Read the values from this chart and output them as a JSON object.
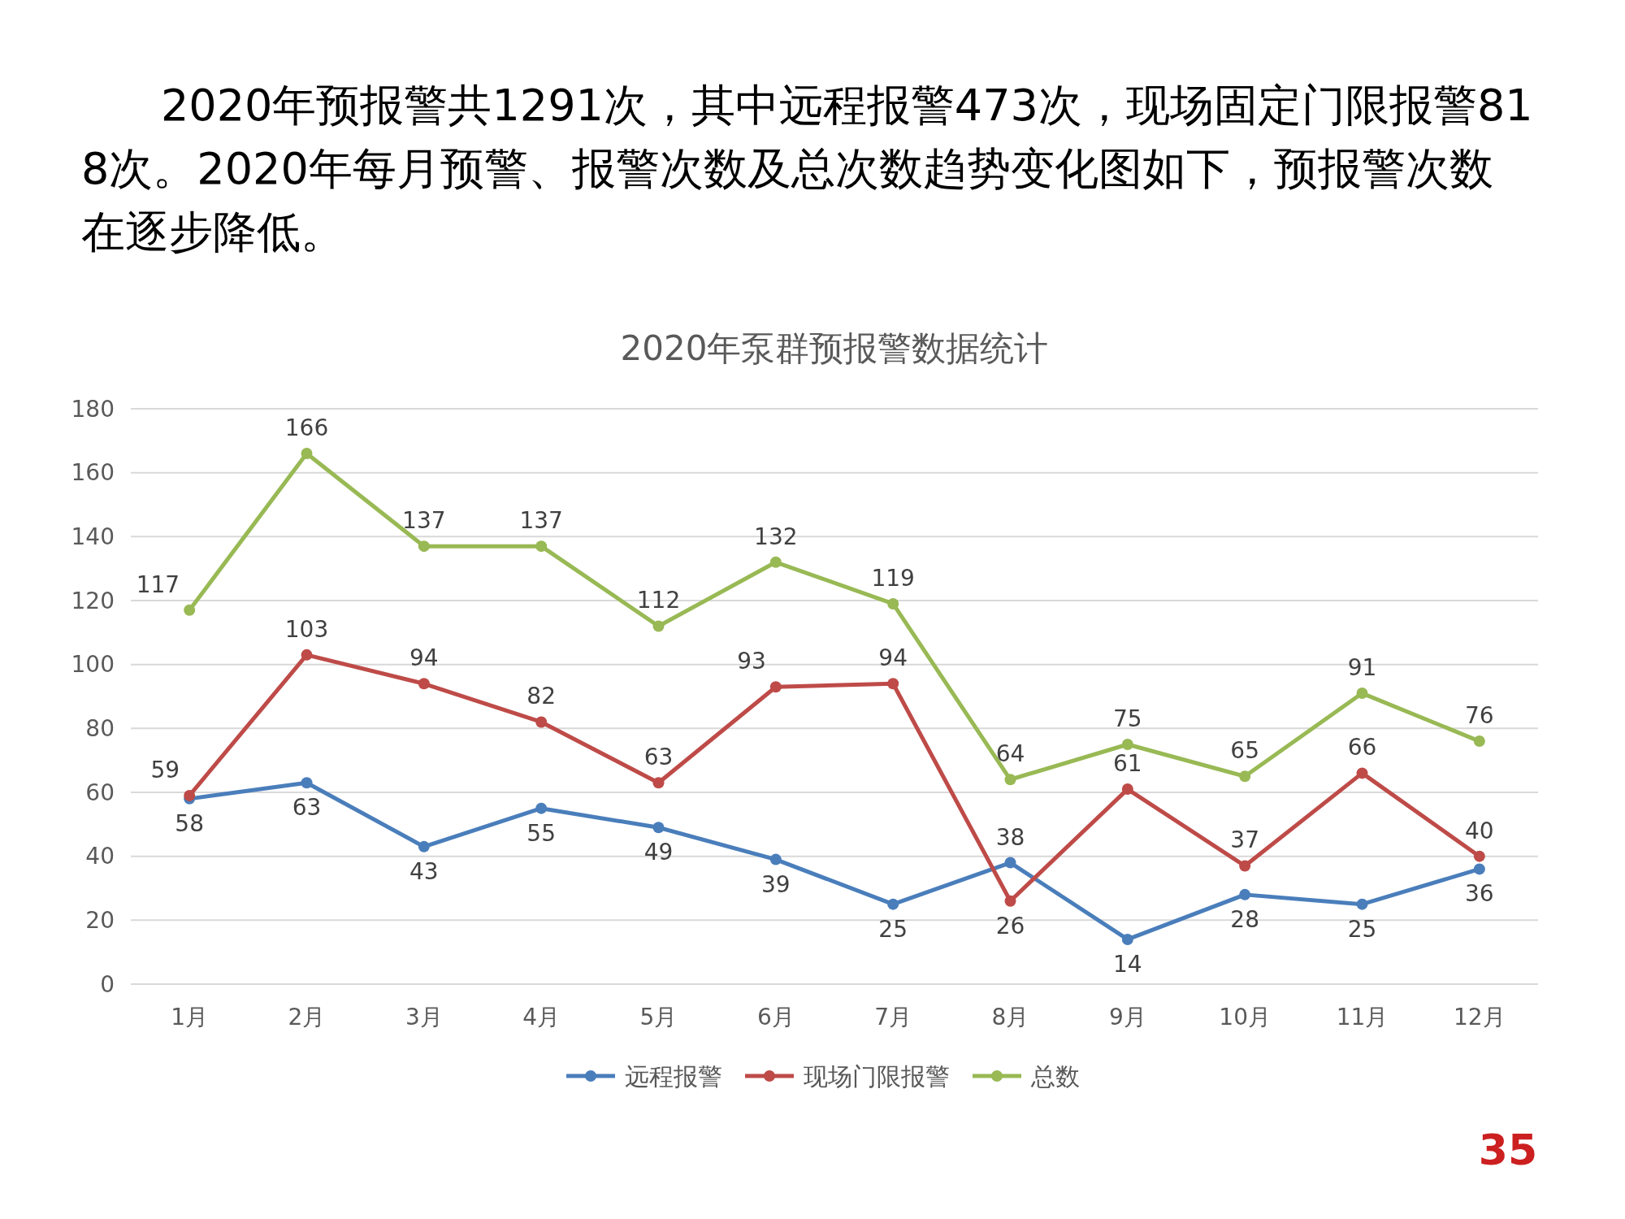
{
  "chart_data": {
    "type": "line",
    "title": "2020年泵群预报警数据统计",
    "annotations": [
      "2020年预报警共1291次，其中远程报警473次，现场固定门限报警818次。2020年每月预警、报警次数及总次数趋势变化图如下，预报警次数在逐步降低。",
      "35"
    ],
    "categories": [
      "1月",
      "2月",
      "3月",
      "4月",
      "5月",
      "6月",
      "7月",
      "8月",
      "9月",
      "10月",
      "11月",
      "12月"
    ],
    "series": [
      {
        "name": "远程报警",
        "color": "#4a7ebb",
        "values": [
          58,
          63,
          43,
          55,
          49,
          39,
          25,
          38,
          14,
          28,
          25,
          36
        ]
      },
      {
        "name": "现场门限报警",
        "color": "#be4b48",
        "values": [
          59,
          103,
          94,
          82,
          63,
          93,
          94,
          26,
          61,
          37,
          66,
          40
        ]
      },
      {
        "name": "总数",
        "color": "#98b954",
        "values": [
          117,
          166,
          137,
          137,
          112,
          132,
          119,
          64,
          75,
          65,
          91,
          76
        ]
      }
    ],
    "ylim": [
      0,
      180
    ],
    "yticks": [
      0,
      20,
      40,
      60,
      80,
      100,
      120,
      140,
      160,
      180
    ],
    "grid": "y",
    "legend": "bottom",
    "marker": "circle",
    "line_style": "solid",
    "data_labels": true
  }
}
